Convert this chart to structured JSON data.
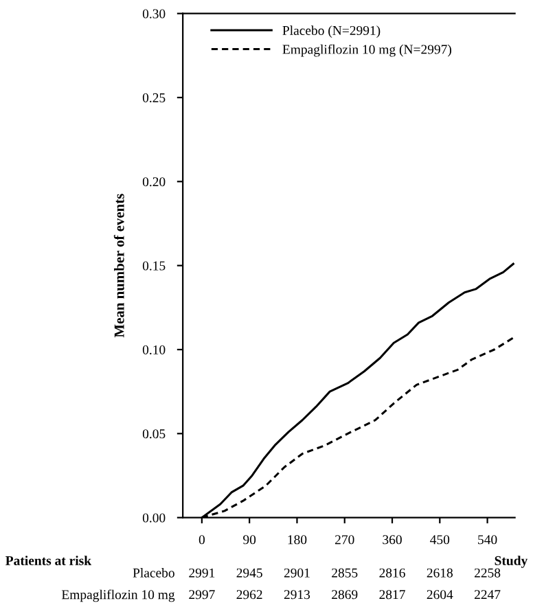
{
  "chart_data": {
    "type": "line",
    "xlabel": "Study",
    "ylabel": "Mean number of events",
    "xlim": [
      -36,
      592
    ],
    "ylim": [
      0,
      0.3
    ],
    "xticks": [
      0,
      90,
      180,
      270,
      360,
      450,
      540
    ],
    "yticks": [
      {
        "value": 0,
        "label": "0.00"
      },
      {
        "value": 0.05,
        "label": "0.05"
      },
      {
        "value": 0.1,
        "label": "0.10"
      },
      {
        "value": 0.15,
        "label": "0.15"
      },
      {
        "value": 0.2,
        "label": "0.20"
      },
      {
        "value": 0.25,
        "label": "0.25"
      },
      {
        "value": 0.3,
        "label": "0.30"
      }
    ],
    "grid": false,
    "legend": "top left",
    "marker": "none",
    "series": [
      {
        "name": "Placebo (N=2991)",
        "color": "#000000",
        "line_style": "solid",
        "x": [
          0,
          35,
          56,
          78,
          95,
          117,
          138,
          164,
          190,
          216,
          242,
          276,
          307,
          337,
          363,
          389,
          410,
          436,
          467,
          497,
          518,
          544,
          570,
          589
        ],
        "values": [
          0,
          0.008,
          0.015,
          0.019,
          0.025,
          0.035,
          0.043,
          0.051,
          0.058,
          0.066,
          0.075,
          0.08,
          0.087,
          0.095,
          0.104,
          0.109,
          0.116,
          0.12,
          0.128,
          0.134,
          0.136,
          0.142,
          0.146,
          0.151
        ]
      },
      {
        "name": "Empagliflozin 10 mg (N=2997)",
        "color": "#000000",
        "line_style": "dashed",
        "x": [
          0,
          43,
          78,
          121,
          156,
          190,
          233,
          276,
          328,
          363,
          406,
          449,
          484,
          510,
          553,
          589
        ],
        "values": [
          0,
          0.004,
          0.01,
          0.019,
          0.03,
          0.038,
          0.043,
          0.05,
          0.058,
          0.068,
          0.079,
          0.084,
          0.088,
          0.094,
          0.1,
          0.107
        ]
      }
    ],
    "annotations": [
      "Patients at risk",
      "Placebo",
      "2991",
      "2945",
      "2901",
      "2855",
      "2816",
      "2618",
      "2258",
      "Empagliflozin 10 mg",
      "2997",
      "2962",
      "2913",
      "2869",
      "2817",
      "2604",
      "2247"
    ]
  }
}
